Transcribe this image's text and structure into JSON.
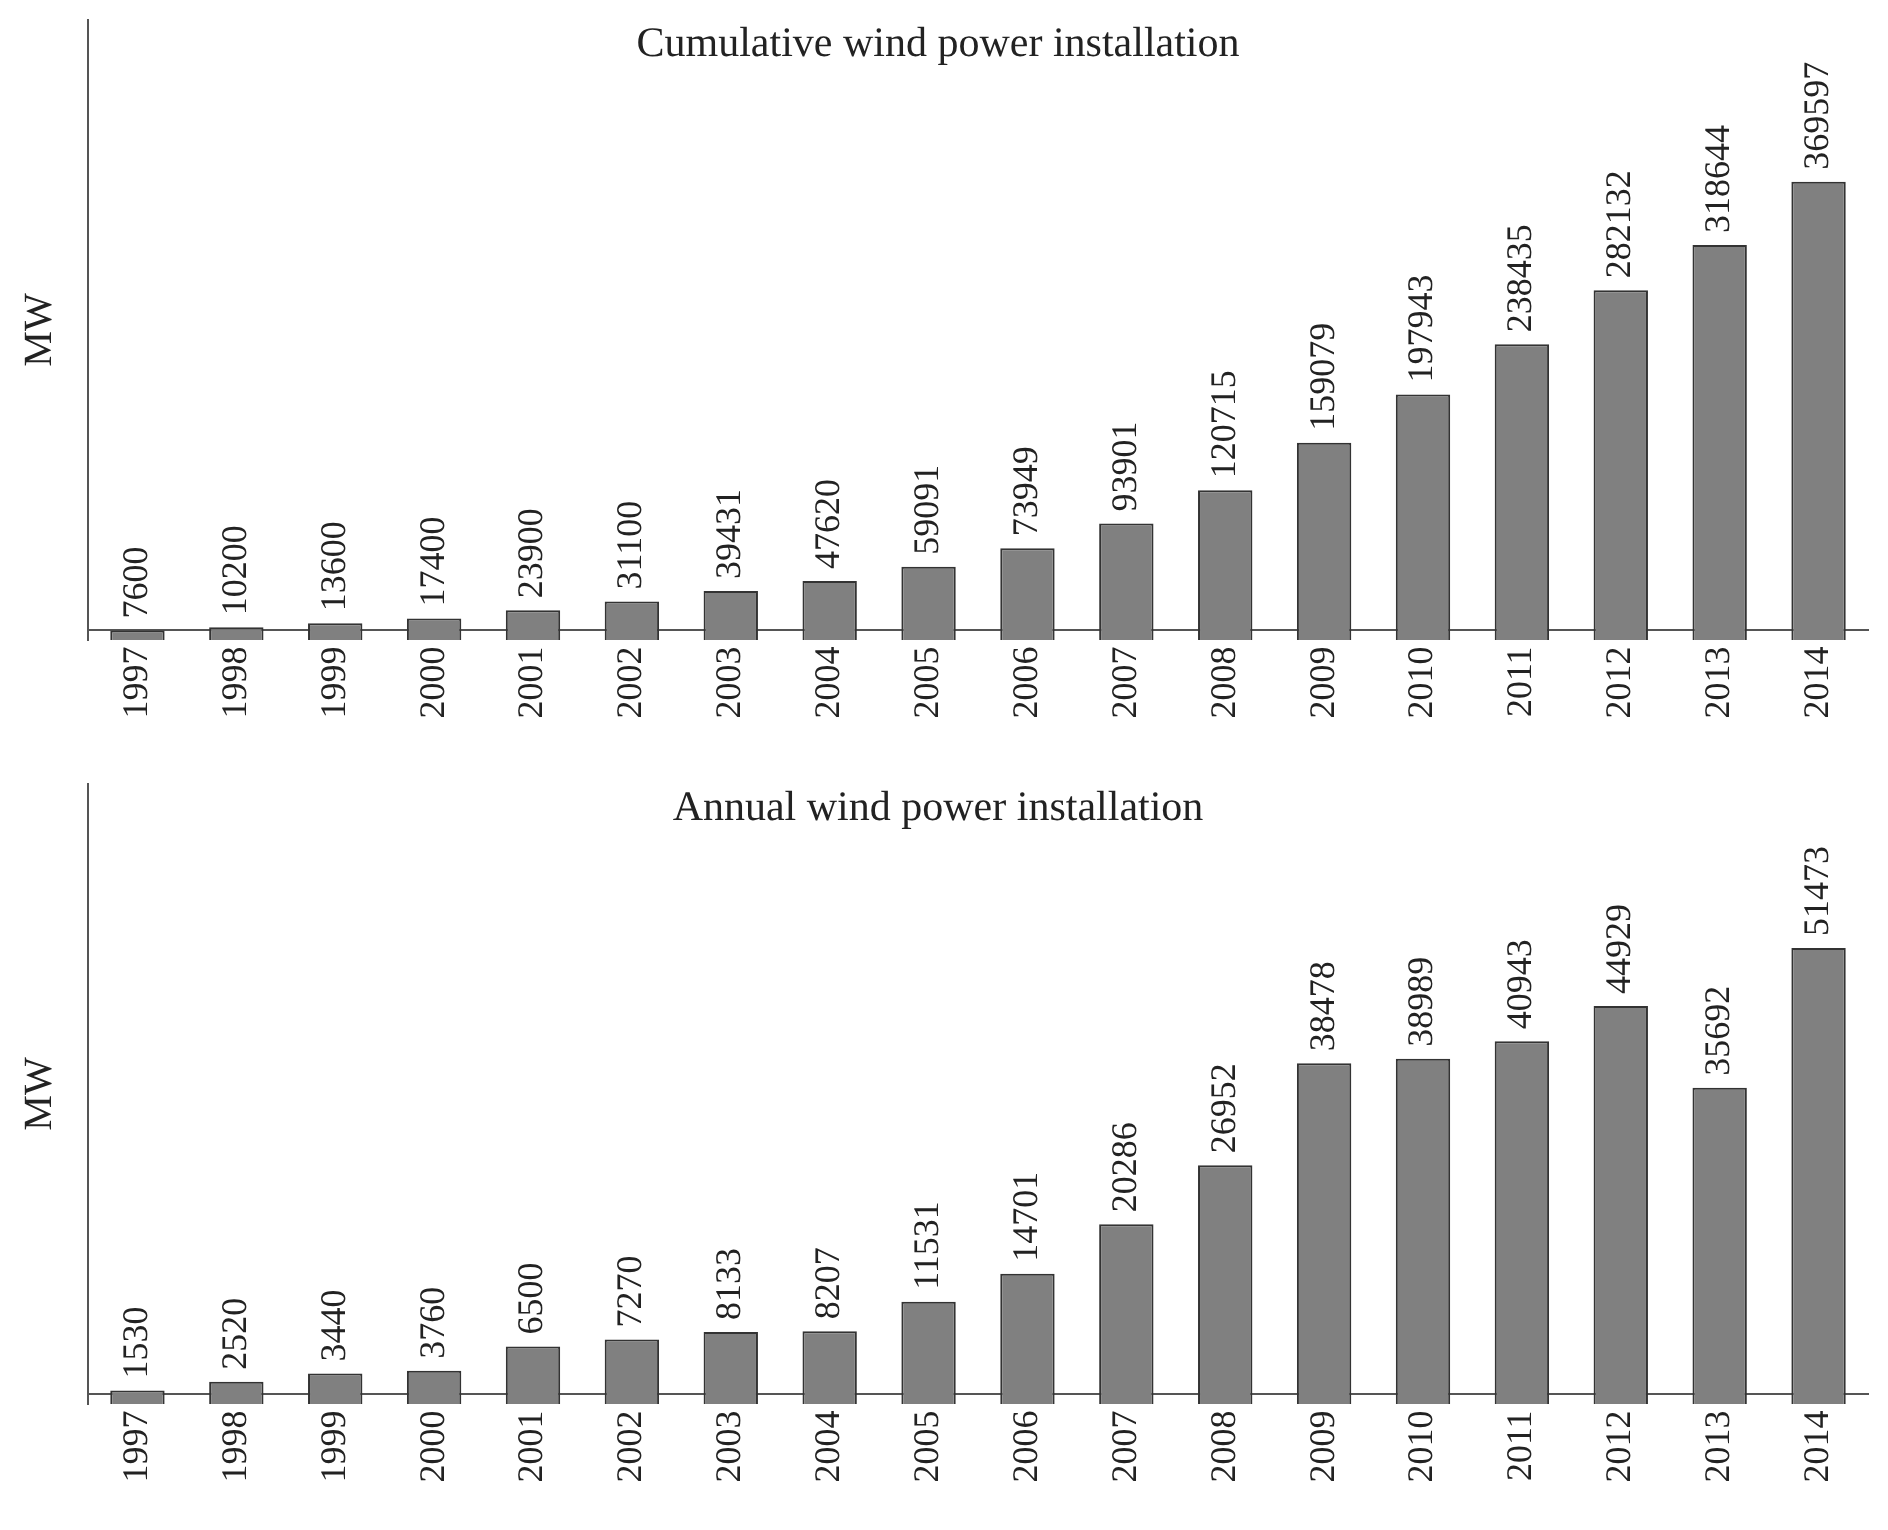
{
  "chart_data": [
    {
      "type": "bar",
      "title": "Cumulative wind power installation",
      "ylabel": "MW",
      "categories": [
        "1997",
        "1998",
        "1999",
        "2000",
        "2001",
        "2002",
        "2003",
        "2004",
        "2005",
        "2006",
        "2007",
        "2008",
        "2009",
        "2010",
        "2011",
        "2012",
        "2013",
        "2014"
      ],
      "values": [
        7600,
        10200,
        13600,
        17400,
        23900,
        31100,
        39431,
        47620,
        59091,
        73949,
        93901,
        120715,
        159079,
        197943,
        238435,
        282132,
        318644,
        369597
      ],
      "color": "#808080",
      "data_labels": true
    },
    {
      "type": "bar",
      "title": "Annual wind power installation",
      "ylabel": "MW",
      "categories": [
        "1997",
        "1998",
        "1999",
        "2000",
        "2001",
        "2002",
        "2003",
        "2004",
        "2005",
        "2006",
        "2007",
        "2008",
        "2009",
        "2010",
        "2011",
        "2012",
        "2013",
        "2014"
      ],
      "values": [
        1530,
        2520,
        3440,
        3760,
        6500,
        7270,
        8133,
        8207,
        11531,
        14701,
        20286,
        26952,
        38478,
        38989,
        40943,
        44929,
        35692,
        51473
      ],
      "color": "#808080",
      "data_labels": true
    }
  ]
}
